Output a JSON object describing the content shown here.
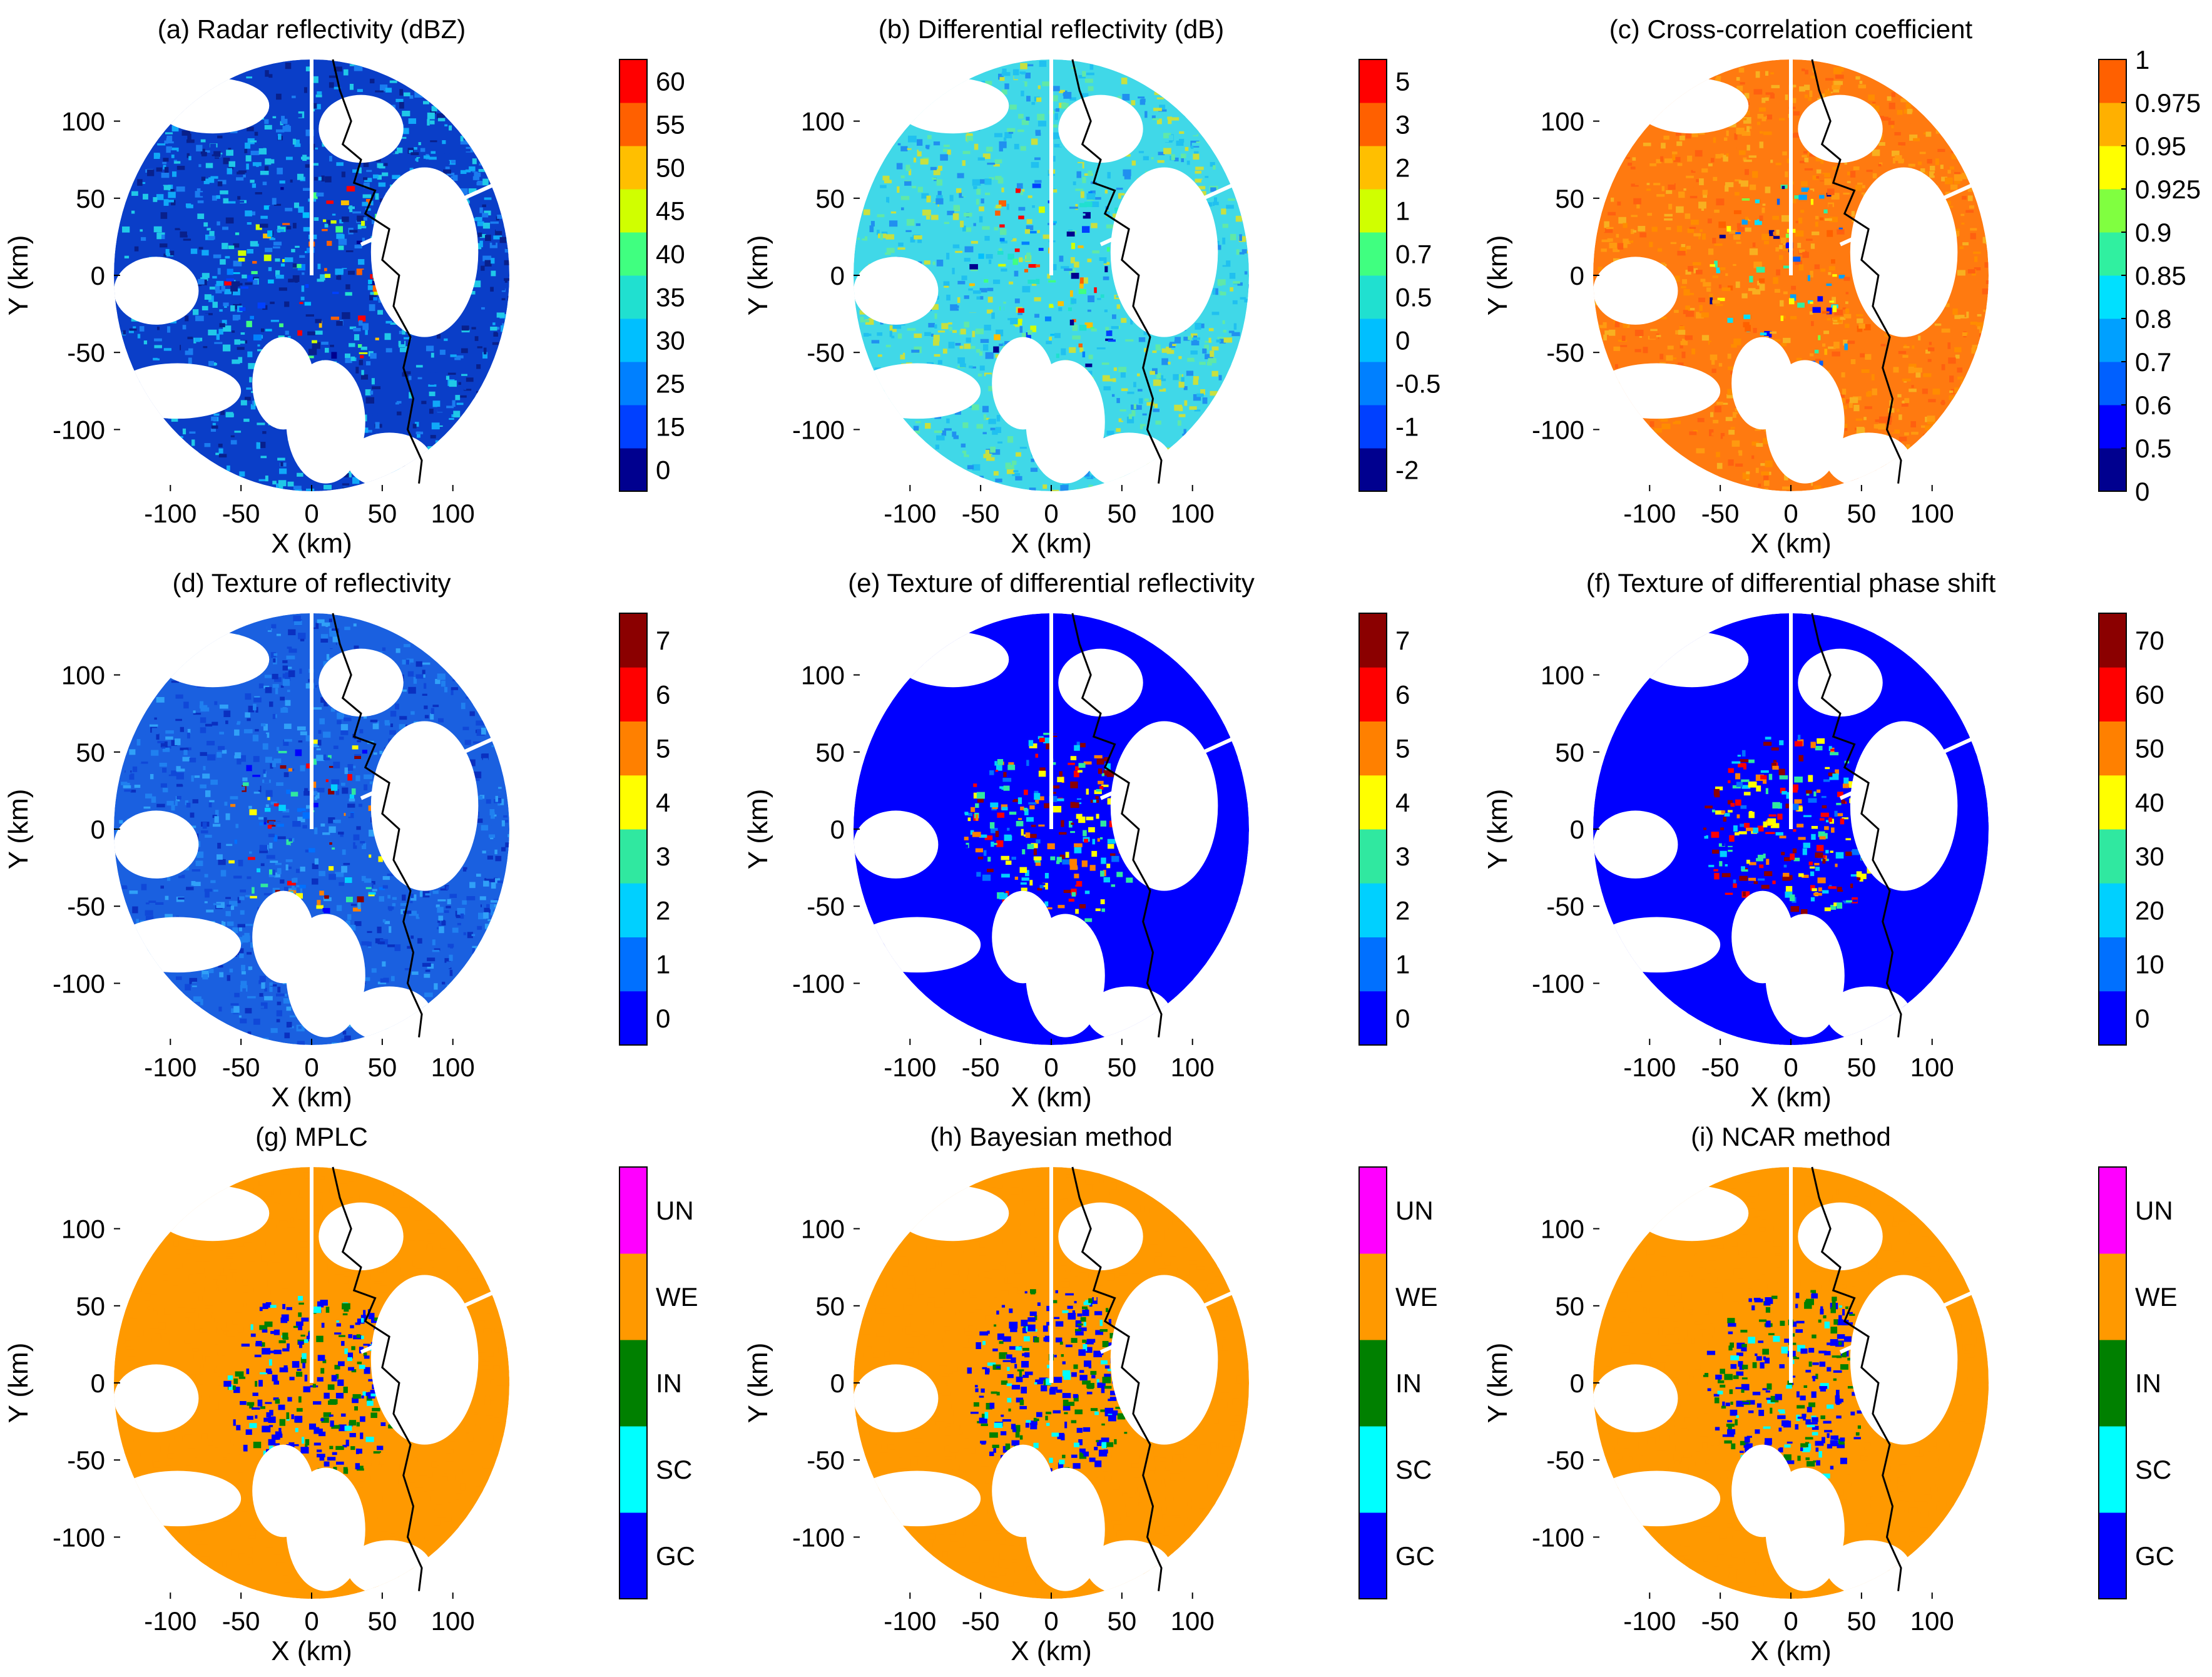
{
  "chart_data": [
    {
      "type": "heatmap",
      "title": "(a) Radar reflectivity (dBZ)",
      "xlabel": "X (km)",
      "ylabel": "Y (km)",
      "xticks": [
        "-100",
        "-50",
        "0",
        "50",
        "100"
      ],
      "yticks": [
        "100",
        "50",
        "0",
        "-50",
        "-100"
      ],
      "xlim": [
        -140,
        140
      ],
      "ylim": [
        -140,
        140
      ],
      "colorbar": {
        "labels": [
          "0",
          "15",
          "25",
          "30",
          "35",
          "40",
          "45",
          "50",
          "55",
          "60"
        ],
        "colors": [
          "#00008f",
          "#0040ff",
          "#0080ff",
          "#00bfff",
          "#20e0d0",
          "#40ff80",
          "#d0ff00",
          "#ffbf00",
          "#ff6000",
          "#ff0000"
        ]
      },
      "field_colors": [
        "#0a3ec8",
        "#1a7cf0",
        "#10a8f8",
        "#20c8e8",
        "#08208c"
      ]
    },
    {
      "type": "heatmap",
      "title": "(b) Differential reflectivity (dB)",
      "xlabel": "X (km)",
      "ylabel": "Y (km)",
      "xticks": [
        "-100",
        "-50",
        "0",
        "50",
        "100"
      ],
      "yticks": [
        "100",
        "50",
        "0",
        "-50",
        "-100"
      ],
      "xlim": [
        -140,
        140
      ],
      "ylim": [
        -140,
        140
      ],
      "colorbar": {
        "labels": [
          "-2",
          "-1",
          "-0.5",
          "0",
          "0.5",
          "0.7",
          "1",
          "2",
          "3",
          "5"
        ],
        "colors": [
          "#00008f",
          "#0040ff",
          "#0080ff",
          "#00bfff",
          "#20e0d0",
          "#40ff80",
          "#d0ff00",
          "#ffbf00",
          "#ff6000",
          "#ff0000"
        ]
      },
      "field_colors": [
        "#40d8e8",
        "#20c0f0",
        "#60e8a8",
        "#2090f0",
        "#c8e040"
      ]
    },
    {
      "type": "heatmap",
      "title": "(c) Cross-correlation coefficient",
      "xlabel": "X (km)",
      "ylabel": "Y (km)",
      "xticks": [
        "-100",
        "-50",
        "0",
        "50",
        "100"
      ],
      "yticks": [
        "100",
        "50",
        "0",
        "-50",
        "-100"
      ],
      "xlim": [
        -140,
        140
      ],
      "ylim": [
        -140,
        140
      ],
      "colorbar": {
        "labels": [
          "0",
          "0.5",
          "0.6",
          "0.7",
          "0.8",
          "0.85",
          "0.9",
          "0.925",
          "0.95",
          "0.975",
          "1"
        ],
        "colors": [
          "#00008f",
          "#0000ff",
          "#0060ff",
          "#00a0ff",
          "#00e0ff",
          "#30f0a0",
          "#80ff40",
          "#ffff00",
          "#ffb000",
          "#ff6000"
        ]
      },
      "field_colors": [
        "#ff7a10",
        "#ff9a10",
        "#ff6010",
        "#f8b020",
        "#ff8c00"
      ]
    },
    {
      "type": "heatmap",
      "title": "(d) Texture of reflectivity",
      "xlabel": "X (km)",
      "ylabel": "Y (km)",
      "xticks": [
        "-100",
        "-50",
        "0",
        "50",
        "100"
      ],
      "yticks": [
        "100",
        "50",
        "0",
        "-50",
        "-100"
      ],
      "xlim": [
        -140,
        140
      ],
      "ylim": [
        -140,
        140
      ],
      "colorbar": {
        "labels": [
          "0",
          "1",
          "2",
          "3",
          "4",
          "5",
          "6",
          "7"
        ],
        "colors": [
          "#0000ff",
          "#0070ff",
          "#00d0ff",
          "#30e8a0",
          "#ffff00",
          "#ff8000",
          "#ff0000",
          "#8b0000"
        ]
      },
      "field_colors": [
        "#1a60e0",
        "#2080f0",
        "#1048d8",
        "#30a0f8",
        "#0a30c0"
      ]
    },
    {
      "type": "heatmap",
      "title": "(e) Texture of differential reflectivity",
      "xlabel": "X (km)",
      "ylabel": "Y (km)",
      "xticks": [
        "-100",
        "-50",
        "0",
        "50",
        "100"
      ],
      "yticks": [
        "100",
        "50",
        "0",
        "-50",
        "-100"
      ],
      "xlim": [
        -140,
        140
      ],
      "ylim": [
        -140,
        140
      ],
      "colorbar": {
        "labels": [
          "0",
          "1",
          "2",
          "3",
          "4",
          "5",
          "6",
          "7"
        ],
        "colors": [
          "#0000ff",
          "#0070ff",
          "#00d0ff",
          "#30e8a0",
          "#ffff00",
          "#ff8000",
          "#ff0000",
          "#8b0000"
        ]
      },
      "field_colors": [
        "#0000ff",
        "#0000f0",
        "#0010ff",
        "#0000ff",
        "#0008f8"
      ]
    },
    {
      "type": "heatmap",
      "title": "(f) Texture of differential phase shift",
      "xlabel": "X (km)",
      "ylabel": "Y (km)",
      "xticks": [
        "-100",
        "-50",
        "0",
        "50",
        "100"
      ],
      "yticks": [
        "100",
        "50",
        "0",
        "-50",
        "-100"
      ],
      "xlim": [
        -140,
        140
      ],
      "ylim": [
        -140,
        140
      ],
      "colorbar": {
        "labels": [
          "0",
          "10",
          "20",
          "30",
          "40",
          "50",
          "60",
          "70"
        ],
        "colors": [
          "#0000ff",
          "#0070ff",
          "#00d0ff",
          "#30e8a0",
          "#ffff00",
          "#ff8000",
          "#ff0000",
          "#8b0000"
        ]
      },
      "field_colors": [
        "#0000ff",
        "#0000f0",
        "#0010ff",
        "#0000ff",
        "#0008f8"
      ]
    },
    {
      "type": "heatmap",
      "title": "(g) MPLC",
      "xlabel": "X (km)",
      "ylabel": "Y (km)",
      "xticks": [
        "-100",
        "-50",
        "0",
        "50",
        "100"
      ],
      "yticks": [
        "100",
        "50",
        "0",
        "-50",
        "-100"
      ],
      "xlim": [
        -140,
        140
      ],
      "ylim": [
        -140,
        140
      ],
      "colorbar": {
        "labels": [
          "GC",
          "SC",
          "IN",
          "WE",
          "UN"
        ],
        "colors": [
          "#0000ff",
          "#00ffff",
          "#008000",
          "#ff9900",
          "#ff00ff"
        ]
      },
      "field_colors": [
        "#ff9900",
        "#ff9900",
        "#ff9900",
        "#ff9900",
        "#ff9900"
      ]
    },
    {
      "type": "heatmap",
      "title": "(h) Bayesian method",
      "xlabel": "X (km)",
      "ylabel": "Y (km)",
      "xticks": [
        "-100",
        "-50",
        "0",
        "50",
        "100"
      ],
      "yticks": [
        "100",
        "50",
        "0",
        "-50",
        "-100"
      ],
      "xlim": [
        -140,
        140
      ],
      "ylim": [
        -140,
        140
      ],
      "colorbar": {
        "labels": [
          "GC",
          "SC",
          "IN",
          "WE",
          "UN"
        ],
        "colors": [
          "#0000ff",
          "#00ffff",
          "#008000",
          "#ff9900",
          "#ff00ff"
        ]
      },
      "field_colors": [
        "#ff9900",
        "#ff9900",
        "#ff9900",
        "#ff9900",
        "#ff9900"
      ]
    },
    {
      "type": "heatmap",
      "title": "(i) NCAR method",
      "xlabel": "X (km)",
      "ylabel": "Y (km)",
      "xticks": [
        "-100",
        "-50",
        "0",
        "50",
        "100"
      ],
      "yticks": [
        "100",
        "50",
        "0",
        "-50",
        "-100"
      ],
      "xlim": [
        -140,
        140
      ],
      "ylim": [
        -140,
        140
      ],
      "colorbar": {
        "labels": [
          "GC",
          "SC",
          "IN",
          "WE",
          "UN"
        ],
        "colors": [
          "#0000ff",
          "#00ffff",
          "#008000",
          "#ff9900",
          "#ff00ff"
        ]
      },
      "field_colors": [
        "#ff9900",
        "#ff9900",
        "#ff9900",
        "#ff9900",
        "#ff9900"
      ]
    }
  ]
}
